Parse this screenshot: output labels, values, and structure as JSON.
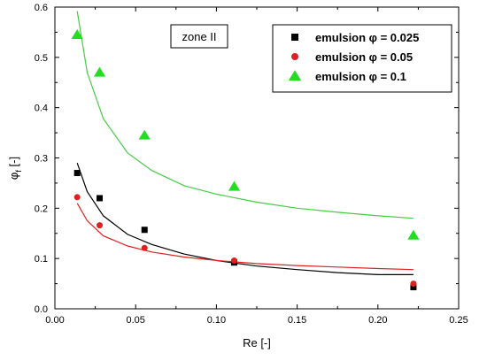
{
  "chart_data": {
    "type": "scatter",
    "annotation": "zone II",
    "xlabel": "Re [-]",
    "ylabel": "φ_f [-]",
    "ylabel_main": "φ",
    "ylabel_sub": "f",
    "ylabel_unit": " [-]",
    "xlim": [
      0.0,
      0.25
    ],
    "ylim": [
      0.0,
      0.6
    ],
    "x_ticks": [
      0.0,
      0.05,
      0.1,
      0.15,
      0.2,
      0.25
    ],
    "x_tick_labels": [
      "0.00",
      "0.05",
      "0.10",
      "0.15",
      "0.20",
      "0.25"
    ],
    "y_ticks": [
      0.0,
      0.1,
      0.2,
      0.3,
      0.4,
      0.5,
      0.6
    ],
    "y_tick_labels": [
      "0.0",
      "0.1",
      "0.2",
      "0.3",
      "0.4",
      "0.5",
      "0.6"
    ],
    "legend_position": "top-right",
    "grid": false,
    "series": [
      {
        "name": "emulsion φ = 0.025",
        "marker": "square",
        "color": "#000000",
        "x": [
          0.0138,
          0.0277,
          0.0555,
          0.111,
          0.222
        ],
        "y": [
          0.27,
          0.22,
          0.157,
          0.092,
          0.043
        ],
        "fit_x": [
          0.0138,
          0.02,
          0.03,
          0.045,
          0.06,
          0.08,
          0.1,
          0.125,
          0.15,
          0.175,
          0.2,
          0.222
        ],
        "fit_y": [
          0.29,
          0.233,
          0.185,
          0.148,
          0.128,
          0.109,
          0.096,
          0.085,
          0.078,
          0.072,
          0.068,
          0.068
        ]
      },
      {
        "name": "emulsion φ = 0.05",
        "marker": "circle",
        "color": "#e02020",
        "x": [
          0.0138,
          0.0277,
          0.0555,
          0.111,
          0.222
        ],
        "y": [
          0.222,
          0.166,
          0.121,
          0.096,
          0.05
        ],
        "fit_x": [
          0.0138,
          0.02,
          0.03,
          0.045,
          0.06,
          0.08,
          0.1,
          0.125,
          0.15,
          0.175,
          0.2,
          0.222
        ],
        "fit_y": [
          0.21,
          0.175,
          0.145,
          0.125,
          0.113,
          0.103,
          0.096,
          0.09,
          0.086,
          0.083,
          0.08,
          0.078
        ]
      },
      {
        "name": "emulsion φ = 0.1",
        "marker": "triangle",
        "color": "#22dd22",
        "x": [
          0.0138,
          0.0277,
          0.0555,
          0.111,
          0.222
        ],
        "y": [
          0.545,
          0.47,
          0.345,
          0.243,
          0.146
        ],
        "fit_x": [
          0.0138,
          0.02,
          0.03,
          0.045,
          0.06,
          0.08,
          0.1,
          0.125,
          0.15,
          0.175,
          0.2,
          0.222
        ],
        "fit_y": [
          0.592,
          0.47,
          0.378,
          0.31,
          0.275,
          0.245,
          0.228,
          0.212,
          0.2,
          0.192,
          0.185,
          0.18
        ],
        "line_color": "#44cc44"
      }
    ]
  }
}
